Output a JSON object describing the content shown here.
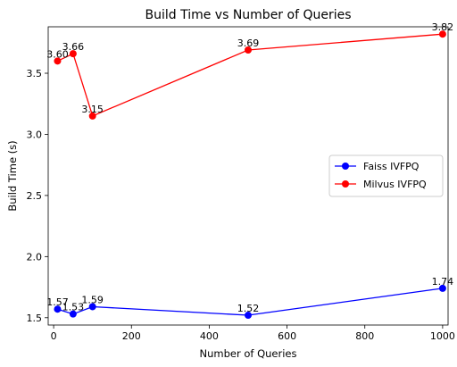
{
  "chart_data": {
    "type": "line",
    "title": "Build Time vs Number of Queries",
    "xlabel": "Number of Queries",
    "ylabel": "Build Time (s)",
    "xlim": [
      -14,
      1014
    ],
    "ylim": [
      1.44,
      3.88
    ],
    "x_ticks": [
      0,
      200,
      400,
      600,
      800,
      1000
    ],
    "y_ticks": [
      1.5,
      2.0,
      2.5,
      3.0,
      3.5
    ],
    "x_tick_labels": [
      "0",
      "200",
      "400",
      "600",
      "800",
      "1000"
    ],
    "y_tick_labels": [
      "1.5",
      "2.0",
      "2.5",
      "3.0",
      "3.5"
    ],
    "grid": false,
    "legend_position": "center-right",
    "series": [
      {
        "name": "Faiss IVFPQ",
        "color": "#0000ff",
        "x": [
          10,
          50,
          100,
          500,
          1000
        ],
        "values": [
          1.57,
          1.53,
          1.59,
          1.52,
          1.74
        ],
        "labels": [
          "1.57",
          "1.53",
          "1.59",
          "1.52",
          "1.74"
        ]
      },
      {
        "name": "Milvus IVFPQ",
        "color": "#ff0000",
        "x": [
          10,
          50,
          100,
          500,
          1000
        ],
        "values": [
          3.6,
          3.66,
          3.15,
          3.69,
          3.82
        ],
        "labels": [
          "3.60",
          "3.66",
          "3.15",
          "3.69",
          "3.82"
        ]
      }
    ]
  }
}
